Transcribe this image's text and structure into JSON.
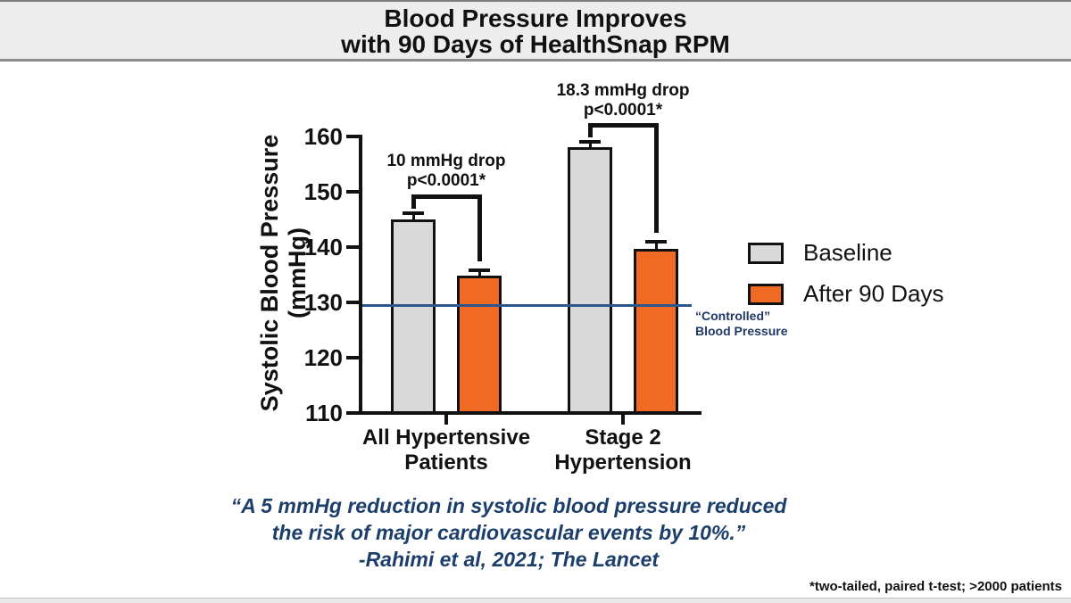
{
  "banner": {
    "title_line1": "Blood Pressure Improves",
    "title_line2": "with 90 Days of HealthSnap RPM"
  },
  "chart_data": {
    "type": "bar",
    "ylabel": "Systolic Blood Pressure (mmHg)",
    "ylabel_lines": [
      "Systolic Blood Pressure",
      "(mmHg)"
    ],
    "ylim": [
      110,
      160
    ],
    "yticks": [
      110,
      120,
      130,
      140,
      150,
      160
    ],
    "grid": false,
    "legend_position": "right",
    "categories": [
      [
        "All Hypertensive",
        "Patients"
      ],
      [
        "Stage 2",
        "Hypertension"
      ]
    ],
    "series": [
      {
        "name": "Baseline",
        "color": "#D9D9D9",
        "values": [
          145,
          158
        ],
        "errors": [
          1.2,
          1.0
        ]
      },
      {
        "name": "After 90 Days",
        "color": "#F16A24",
        "values": [
          134.8,
          139.7
        ],
        "errors": [
          1.0,
          1.2
        ]
      }
    ],
    "annotations": [
      {
        "line1": "10 mmHg drop",
        "line2": "p<0.0001*"
      },
      {
        "line1": "18.3 mmHg drop",
        "line2": "p<0.0001*"
      }
    ],
    "reference_line": {
      "value": 129.5,
      "color": "#2B578C",
      "label_lines": [
        "“Controlled”",
        "Blood Pressure"
      ]
    }
  },
  "quote": {
    "line1": "“A 5 mmHg reduction in systolic blood pressure reduced",
    "line2": "the risk of major cardiovascular events by 10%.”",
    "line3": "-Rahimi et al, 2021; The Lancet",
    "color": "#1C3E6B"
  },
  "footnote": "*two-tailed, paired t-test; >2000 patients",
  "colors": {
    "baseline_bar": "#D9D9D9",
    "after_bar": "#F16A24",
    "reference_blue": "#2B578C",
    "navy_text": "#1F3864",
    "banner_bg": "#EDEDED"
  }
}
